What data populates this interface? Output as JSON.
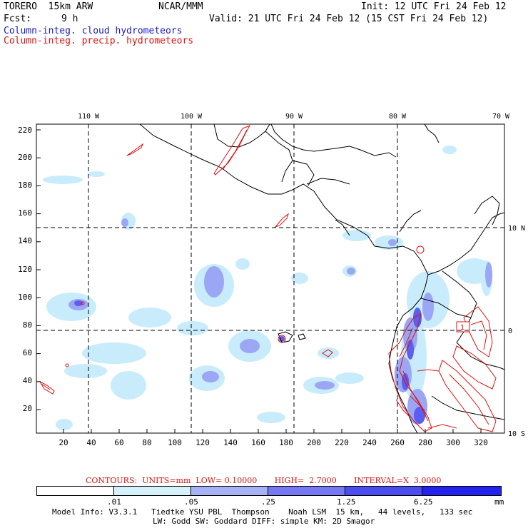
{
  "header": {
    "model": "TORERO  15km ARW",
    "org": "NCAR/MMM",
    "init": "Init: 12 UTC Fri 24 Feb 12",
    "fcst_label": "Fcst:",
    "fcst_value": "9 h",
    "valid": "Valid: 21 UTC Fri 24 Feb 12 (15 CST Fri 24 Feb 12)",
    "field1": "Column-integ. cloud hydrometeors",
    "field2": "Column-integ. precip. hydrometeors"
  },
  "map": {
    "lon_labels": [
      "110 W",
      "100 W",
      "90 W",
      "80 W",
      "70 W"
    ],
    "lat_labels": [
      "10 N",
      "0",
      "10 S"
    ],
    "y_ticks": [
      "220",
      "200",
      "180",
      "160",
      "140",
      "120",
      "100",
      "80",
      "60",
      "40",
      "20"
    ],
    "x_ticks": [
      "20",
      "40",
      "60",
      "80",
      "100",
      "120",
      "140",
      "160",
      "180",
      "200",
      "220",
      "240",
      "260",
      "280",
      "300",
      "320"
    ],
    "contour_label": "1",
    "colors": {
      "precip": "#dd1111",
      "cloud_light": "#c8ecfb",
      "cloud_mid": "#9ba6f5",
      "cloud_dark": "#5a5ff0"
    }
  },
  "contours_info": {
    "text": "CONTOURS:  UNITS=mm  LOW= 0.10000       HIGH=  2.7000       INTERVAL=X  3.0000"
  },
  "colorbar": {
    "labels": [
      ".01",
      ".05",
      ".25",
      "1.25",
      "6.25"
    ],
    "unit": "mm",
    "colors": [
      "#ffffff",
      "#d5f2fc",
      "#a6b2f5",
      "#7677f2",
      "#4b4df0",
      "#2222ee"
    ]
  },
  "footer": {
    "line1": "Model Info: V3.3.1   Tiedtke YSU PBL  Thompson    Noah LSM  15 km,   44 levels,   133 sec",
    "line2": "LW: Godd SW: Goddard DIFF: simple KM: 2D Smagor"
  }
}
